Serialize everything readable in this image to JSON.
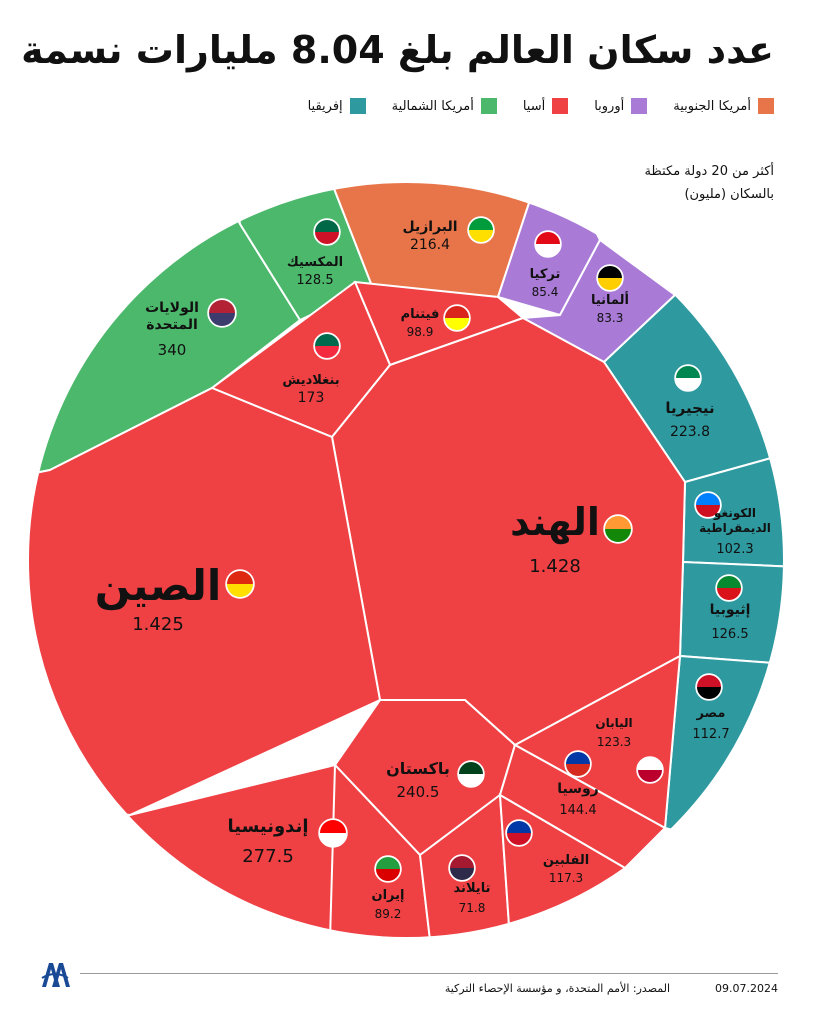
{
  "header": {
    "title": "عدد سكان العالم بلغ 8.04 مليارات نسمة",
    "note_line1": "أكثر من 20 دولة مكتظة",
    "note_line2": "بالسكان (مليون)"
  },
  "legend": [
    {
      "label": "إفريقيا",
      "color": "#2e9aa0"
    },
    {
      "label": "أمريكا الشمالية",
      "color": "#4cb86c"
    },
    {
      "label": "أسيا",
      "color": "#ef4044"
    },
    {
      "label": "أوروبا",
      "color": "#a97ad6"
    },
    {
      "label": "أمريكا الجنوبية",
      "color": "#e8754a"
    }
  ],
  "chart_data": {
    "type": "voronoi-treemap",
    "unit": "مليون",
    "series": [
      {
        "name": "أسيا",
        "color": "#ef4044",
        "values": [
          {
            "country": "الهند",
            "value": "1.428"
          },
          {
            "country": "الصين",
            "value": "1.425"
          },
          {
            "country": "إندونيسيا",
            "value": "277.5"
          },
          {
            "country": "باكستان",
            "value": "240.5"
          },
          {
            "country": "بنغلاديش",
            "value": "173"
          },
          {
            "country": "روسيا",
            "value": "144.4"
          },
          {
            "country": "اليابان",
            "value": "123.3"
          },
          {
            "country": "الفلبين",
            "value": "117.3"
          },
          {
            "country": "فيتنام",
            "value": "98.9"
          },
          {
            "country": "إيران",
            "value": "89.2"
          },
          {
            "country": "تايلاند",
            "value": "71.8"
          }
        ]
      },
      {
        "name": "إفريقيا",
        "color": "#2e9aa0",
        "values": [
          {
            "country": "نيجيريا",
            "value": "223.8"
          },
          {
            "country": "إثيوبيا",
            "value": "126.5"
          },
          {
            "country": "مصر",
            "value": "112.7"
          },
          {
            "country": "الكونغو الديمقراطية",
            "value": "102.3"
          }
        ]
      },
      {
        "name": "أمريكا الشمالية",
        "color": "#4cb86c",
        "values": [
          {
            "country": "الولايات المتحدة",
            "value": "340"
          },
          {
            "country": "المكسيك",
            "value": "128.5"
          }
        ]
      },
      {
        "name": "أوروبا",
        "color": "#a97ad6",
        "values": [
          {
            "country": "تركيا",
            "value": "85.4"
          },
          {
            "country": "ألمانيا",
            "value": "83.3"
          }
        ]
      },
      {
        "name": "أمريكا الجنوبية",
        "color": "#e8754a",
        "values": [
          {
            "country": "البرازيل",
            "value": "216.4"
          }
        ]
      }
    ]
  },
  "footer": {
    "source": "المصدر: الأمم المتحدة، و مؤسسة الإحصاء التركية",
    "date": "09.07.2024",
    "logo_text": "AA"
  }
}
